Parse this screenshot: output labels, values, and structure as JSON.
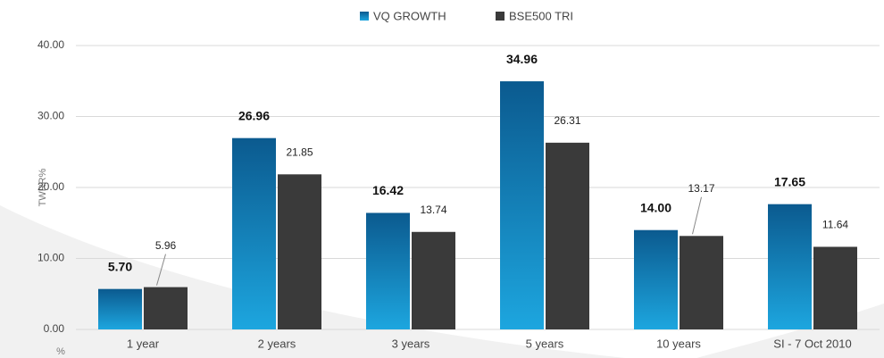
{
  "chart_data": {
    "type": "bar",
    "y_label": "TWRR%",
    "y_unit": "%",
    "categories": [
      "1 year",
      "2 years",
      "3 years",
      "5 years",
      "10 years",
      "SI - 7 Oct 2010"
    ],
    "series": [
      {
        "name": "VQ  GROWTH",
        "color": "#0e6aa8",
        "values": [
          5.7,
          26.96,
          16.42,
          34.96,
          14.0,
          17.65
        ],
        "value_labels": [
          "5.70",
          "26.96",
          "16.42",
          "34.96",
          "14.00",
          "17.65"
        ]
      },
      {
        "name": "BSE500 TRI",
        "color": "#3a3a3a",
        "values": [
          5.96,
          21.85,
          13.74,
          26.31,
          13.17,
          11.64
        ],
        "value_labels": [
          "5.96",
          "21.85",
          "13.74",
          "26.31",
          "13.17",
          "11.64"
        ]
      }
    ],
    "ylim": [
      0,
      40
    ],
    "yticks": [
      {
        "value": 0,
        "label": "0.00"
      },
      {
        "value": 10,
        "label": "10.00"
      },
      {
        "value": 20,
        "label": "20.00"
      },
      {
        "value": 30,
        "label": "30.00"
      },
      {
        "value": 40,
        "label": "40.00"
      }
    ],
    "grid": true
  }
}
